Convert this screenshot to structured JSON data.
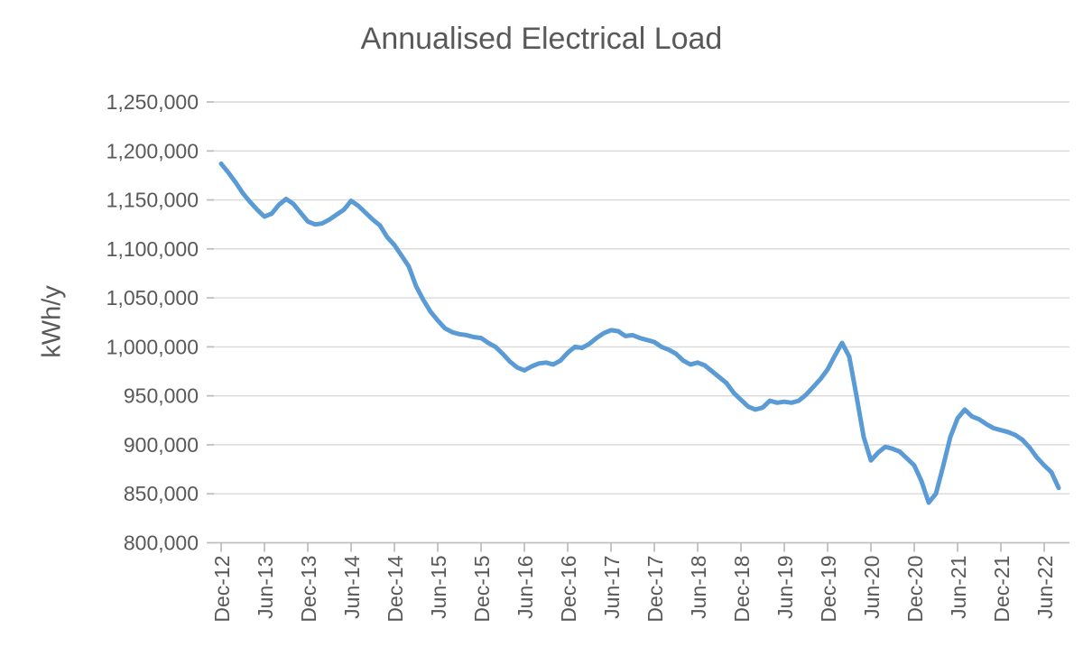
{
  "chart_data": {
    "type": "line",
    "title": "Annualised Electrical Load",
    "xlabel": "",
    "ylabel": "kWh/y",
    "legend_position": "none",
    "grid": true,
    "ylim": [
      800000,
      1250000
    ],
    "y_step": 50000,
    "y_tick_labels": [
      "1,250,000",
      "1,200,000",
      "1,150,000",
      "1,100,000",
      "1,050,000",
      "1,000,000",
      "950,000",
      "900,000",
      "850,000",
      "800,000"
    ],
    "x_tick_labels": [
      "Dec-12",
      "Jun-13",
      "Dec-13",
      "Jun-14",
      "Dec-14",
      "Jun-15",
      "Dec-15",
      "Jun-16",
      "Dec-16",
      "Jun-17",
      "Dec-17",
      "Jun-18",
      "Dec-18",
      "Jun-19",
      "Dec-19",
      "Jun-20",
      "Dec-20",
      "Jun-21",
      "Dec-21",
      "Jun-22"
    ],
    "x": [
      "Dec-12",
      "Jan-13",
      "Feb-13",
      "Mar-13",
      "Apr-13",
      "May-13",
      "Jun-13",
      "Jul-13",
      "Aug-13",
      "Sep-13",
      "Oct-13",
      "Nov-13",
      "Dec-13",
      "Jan-14",
      "Feb-14",
      "Mar-14",
      "Apr-14",
      "May-14",
      "Jun-14",
      "Jul-14",
      "Aug-14",
      "Sep-14",
      "Oct-14",
      "Nov-14",
      "Dec-14",
      "Jan-15",
      "Feb-15",
      "Mar-15",
      "Apr-15",
      "May-15",
      "Jun-15",
      "Jul-15",
      "Aug-15",
      "Sep-15",
      "Oct-15",
      "Nov-15",
      "Dec-15",
      "Jan-16",
      "Feb-16",
      "Mar-16",
      "Apr-16",
      "May-16",
      "Jun-16",
      "Jul-16",
      "Aug-16",
      "Sep-16",
      "Oct-16",
      "Nov-16",
      "Dec-16",
      "Jan-17",
      "Feb-17",
      "Mar-17",
      "Apr-17",
      "May-17",
      "Jun-17",
      "Jul-17",
      "Aug-17",
      "Sep-17",
      "Oct-17",
      "Nov-17",
      "Dec-17",
      "Jan-18",
      "Feb-18",
      "Mar-18",
      "Apr-18",
      "May-18",
      "Jun-18",
      "Jul-18",
      "Aug-18",
      "Sep-18",
      "Oct-18",
      "Nov-18",
      "Dec-18",
      "Jan-19",
      "Feb-19",
      "Mar-19",
      "Apr-19",
      "May-19",
      "Jun-19",
      "Jul-19",
      "Aug-19",
      "Sep-19",
      "Oct-19",
      "Nov-19",
      "Dec-19",
      "Jan-20",
      "Feb-20",
      "Mar-20",
      "Apr-20",
      "May-20",
      "Jun-20",
      "Jul-20",
      "Aug-20",
      "Sep-20",
      "Oct-20",
      "Nov-20",
      "Dec-20",
      "Jan-21",
      "Feb-21",
      "Mar-21",
      "Apr-21",
      "May-21",
      "Jun-21",
      "Jul-21",
      "Aug-21",
      "Sep-21",
      "Oct-21",
      "Nov-21",
      "Dec-21",
      "Jan-22",
      "Feb-22",
      "Mar-22",
      "Apr-22",
      "May-22",
      "Jun-22",
      "Jul-22",
      "Aug-22"
    ],
    "series": [
      {
        "name": "Annualised Electrical Load",
        "values": [
          1187000,
          1178000,
          1168000,
          1157000,
          1148000,
          1140000,
          1133000,
          1136000,
          1145000,
          1151000,
          1146000,
          1137000,
          1128000,
          1125000,
          1126000,
          1130000,
          1135000,
          1140000,
          1149000,
          1144000,
          1137000,
          1130000,
          1124000,
          1112000,
          1104000,
          1093000,
          1082000,
          1062000,
          1048000,
          1036000,
          1027000,
          1019000,
          1015000,
          1013000,
          1012000,
          1010000,
          1009000,
          1004000,
          1000000,
          993000,
          985000,
          979000,
          976000,
          980000,
          983000,
          984000,
          982000,
          986000,
          994000,
          1000000,
          999000,
          1003000,
          1009000,
          1014000,
          1017000,
          1016000,
          1011000,
          1012000,
          1009000,
          1007000,
          1005000,
          1000000,
          997000,
          993000,
          986000,
          982000,
          984000,
          981000,
          975000,
          969000,
          963000,
          953000,
          946000,
          939000,
          936000,
          938000,
          945000,
          943000,
          944000,
          943000,
          945000,
          951000,
          959000,
          967000,
          977000,
          991000,
          1004000,
          990000,
          950000,
          908000,
          884000,
          892000,
          898000,
          896000,
          893000,
          886000,
          879000,
          863000,
          841000,
          850000,
          878000,
          908000,
          927000,
          936000,
          929000,
          926000,
          921000,
          917000,
          915000,
          913000,
          910000,
          905000,
          897000,
          887000,
          879000,
          872000,
          856000
        ]
      }
    ],
    "colors": {
      "line": "#5B9BD5",
      "gridline": "#D9D9D9",
      "axis": "#BFBFBF",
      "text": "#595959"
    }
  }
}
